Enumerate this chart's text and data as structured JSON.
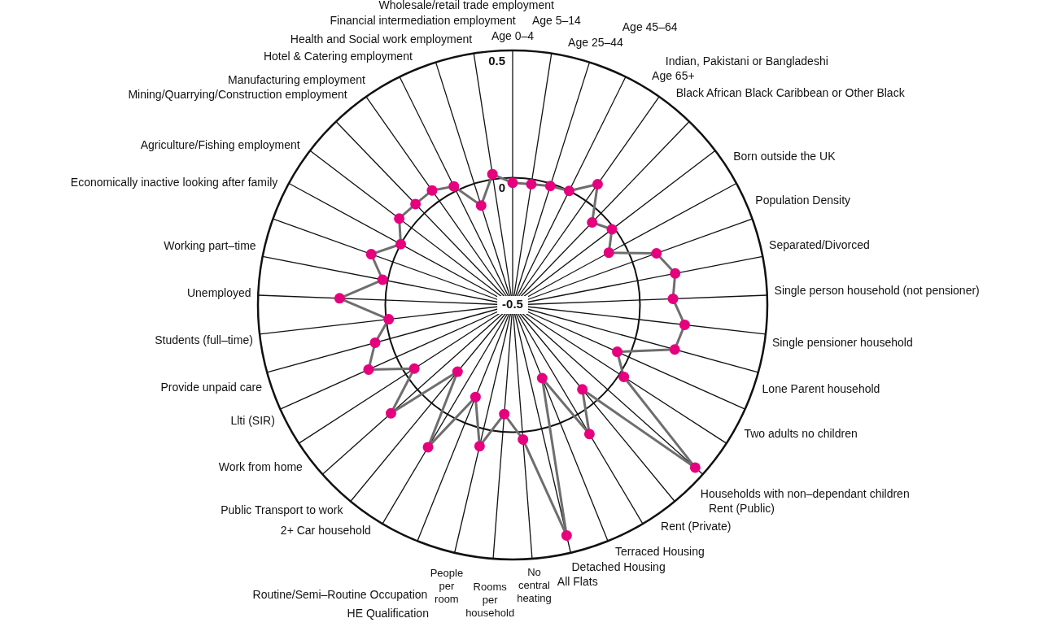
{
  "chart_data": {
    "type": "radar",
    "categories": [
      "Age 0–4",
      "Age 5–14",
      "Age 25–44",
      "Age 45–64",
      "Age 65+",
      "Indian, Pakistani or Bangladeshi",
      "Black African Black Caribbean or Other Black",
      "Born outside the UK",
      "Population Density",
      "Separated/Divorced",
      "Single person household (not pensioner)",
      "Single pensioner household",
      "Lone Parent household",
      "Two adults no children",
      "Households with non–dependant children",
      "Rent (Public)",
      "Rent (Private)",
      "Terraced Housing",
      "Detached Housing",
      "All Flats",
      "No central heating",
      "Rooms per household",
      "People per room",
      "HE Qualification",
      "Routine/Semi–Routine Occupation",
      "2+ Car household",
      "Public Transport to work",
      "Work from home",
      "Llti (SIR)",
      "Provide unpaid care",
      "Students (full–time)",
      "Unemployed",
      "Working part–time",
      "Economically inactive looking after family",
      "Agriculture/Fishing employment",
      "Mining/Quarrying/Construction employment",
      "Manufacturing employment",
      "Hotel & Catering employment",
      "Health and Social work employment",
      "Financial intermediation employment",
      "Wholesale/retail trade employment"
    ],
    "series": [
      {
        "color": "#6e6e6e",
        "colors": [
          "#e6007e",
          "#e6007e",
          "#e6007e",
          "#e6007e",
          "#e6007e",
          "#e6007e",
          "#e6007e",
          "#e6007e",
          "#e6007e",
          "#e6007e",
          "#e6007e",
          "#e6007e",
          "#e6007e",
          "#e6007e",
          "#e6007e",
          "#e6007e",
          "#e6007e",
          "#e6007e",
          "#e6007e",
          "#e6007e",
          "#e6007e",
          "#e6007e",
          "#e6007e",
          "#e6007e",
          "#e6007e",
          "#e6007e",
          "#e6007e",
          "#e6007e",
          "#e6007e",
          "#e6007e",
          "#e6007e",
          "#e6007e",
          "#e6007e",
          "#e6007e",
          "#e6007e",
          "#e6007e",
          "#e6007e",
          "#e6007e",
          "#e6007e",
          "#e6007e",
          "#e6007e"
        ],
        "values": [
          -0.02,
          -0.02,
          -0.01,
          0.0,
          0.08,
          -0.05,
          -0.01,
          -0.07,
          0.1,
          0.15,
          0.13,
          0.18,
          0.16,
          -0.05,
          0.02,
          0.46,
          -0.07,
          0.09,
          -0.19,
          0.43,
          0.03,
          -0.07,
          0.07,
          -0.11,
          0.15,
          -0.16,
          0.14,
          -0.04,
          0.12,
          0.06,
          -0.01,
          0.18,
          0.02,
          0.09,
          0.0,
          0.06,
          0.05,
          0.05,
          0.02,
          -0.09,
          0.02
        ]
      }
    ],
    "ylim": [
      -0.5,
      0.5
    ],
    "yticks": [
      -0.5,
      0,
      0.5
    ],
    "grid": true,
    "marker": "circle"
  }
}
